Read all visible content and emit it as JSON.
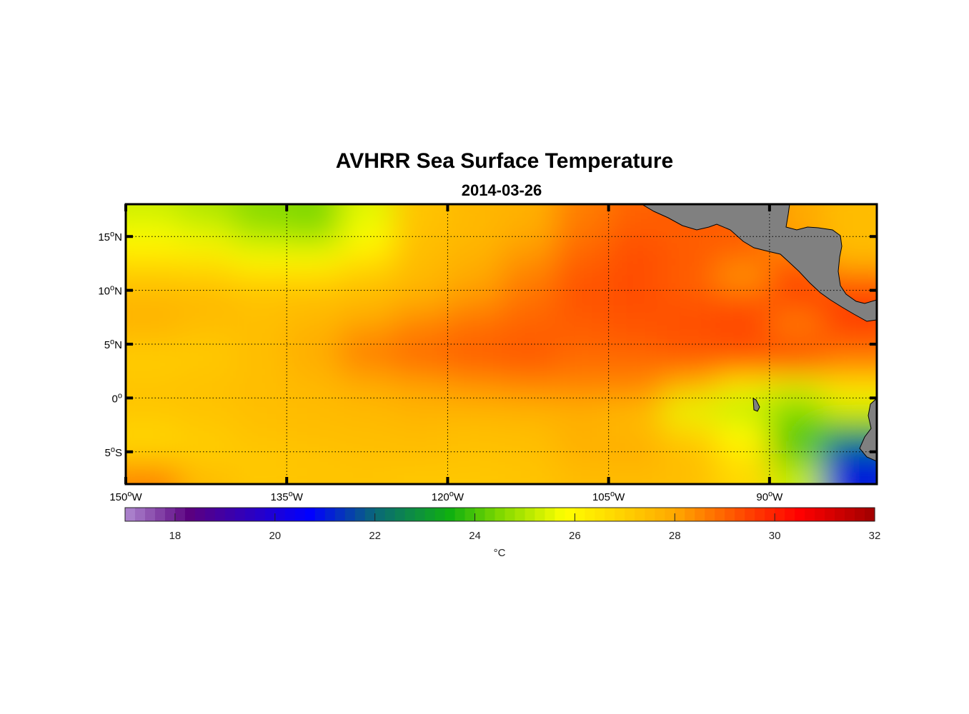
{
  "chart_data": {
    "type": "heatmap",
    "title": "AVHRR Sea Surface Temperature",
    "subtitle": "2014-03-26",
    "lon_range": [
      -150,
      -80
    ],
    "lat_range": [
      -8,
      18
    ],
    "x_ticks": [
      {
        "value": -150,
        "label": "150°W"
      },
      {
        "value": -135,
        "label": "135°W"
      },
      {
        "value": -120,
        "label": "120°W"
      },
      {
        "value": -105,
        "label": "105°W"
      },
      {
        "value": -90,
        "label": "90°W"
      }
    ],
    "y_ticks": [
      {
        "value": 15,
        "label": "15°N"
      },
      {
        "value": 10,
        "label": "10°N"
      },
      {
        "value": 5,
        "label": "5°N"
      },
      {
        "value": 0,
        "label": "0°"
      },
      {
        "value": -5,
        "label": "5°S"
      }
    ],
    "grid": true,
    "grid_lon_step": 5,
    "grid_lat_step": 2,
    "lat_centers": [
      17,
      15,
      13,
      11,
      9,
      7,
      5,
      3,
      1,
      -1,
      -3,
      -5,
      -7
    ],
    "lon_centers": [
      -147.5,
      -142.5,
      -137.5,
      -132.5,
      -127.5,
      -122.5,
      -117.5,
      -112.5,
      -107.5,
      -102.5,
      -97.5,
      -92.5,
      -87.5,
      -82.5
    ],
    "sst": [
      [
        25.3,
        25.0,
        24.6,
        24.5,
        25.5,
        27.3,
        27.6,
        27.8,
        28.6,
        29.0,
        29.2,
        29.0,
        28.0,
        27.5
      ],
      [
        25.8,
        25.6,
        25.0,
        24.8,
        25.8,
        27.4,
        27.6,
        28.0,
        28.8,
        29.2,
        29.0,
        29.2,
        28.0,
        27.5
      ],
      [
        26.5,
        26.4,
        25.8,
        25.8,
        26.5,
        27.5,
        27.8,
        28.3,
        29.0,
        29.3,
        29.2,
        28.8,
        29.0,
        27.5
      ],
      [
        27.3,
        27.2,
        27.0,
        27.0,
        27.3,
        27.6,
        28.0,
        28.6,
        29.2,
        29.3,
        29.0,
        28.2,
        29.3,
        29.0
      ],
      [
        27.6,
        27.6,
        27.4,
        27.5,
        27.6,
        27.9,
        28.3,
        28.8,
        29.2,
        29.3,
        29.2,
        29.3,
        29.5,
        29.5
      ],
      [
        27.8,
        27.5,
        27.4,
        27.6,
        28.0,
        28.5,
        28.8,
        29.0,
        29.1,
        29.2,
        29.3,
        29.4,
        28.5,
        29.6
      ],
      [
        27.3,
        27.2,
        27.5,
        27.9,
        28.6,
        28.8,
        29.0,
        29.1,
        29.0,
        29.1,
        29.2,
        29.3,
        29.3,
        29.0
      ],
      [
        27.0,
        27.2,
        27.4,
        27.8,
        28.4,
        28.8,
        29.0,
        29.1,
        28.8,
        28.8,
        29.0,
        29.0,
        29.0,
        28.5
      ],
      [
        27.4,
        27.4,
        27.5,
        27.6,
        27.8,
        28.0,
        28.2,
        28.4,
        28.5,
        28.5,
        27.5,
        26.0,
        25.5,
        26.5
      ],
      [
        27.2,
        27.3,
        27.4,
        27.5,
        27.6,
        27.8,
        27.8,
        27.8,
        27.8,
        27.6,
        25.5,
        25.0,
        24.5,
        25.5
      ],
      [
        27.0,
        27.2,
        27.4,
        27.5,
        27.5,
        27.5,
        27.4,
        27.5,
        27.8,
        27.6,
        26.8,
        25.8,
        24.3,
        23.5
      ],
      [
        26.8,
        27.0,
        27.2,
        27.3,
        27.4,
        27.5,
        27.4,
        27.4,
        27.8,
        27.9,
        27.5,
        26.3,
        24.0,
        21.5
      ],
      [
        28.5,
        27.5,
        27.2,
        27.3,
        27.3,
        27.2,
        27.2,
        27.3,
        27.5,
        27.5,
        27.4,
        26.8,
        25.2,
        21.0
      ]
    ],
    "colorbar": {
      "range": [
        17,
        32
      ],
      "ticks": [
        18,
        20,
        22,
        24,
        26,
        28,
        30,
        32
      ],
      "tick_labels": [
        "18",
        "20",
        "22",
        "24",
        "26",
        "28",
        "30",
        "32"
      ],
      "unit_label": "°C",
      "stops": [
        [
          17,
          "#b08ad0"
        ],
        [
          18.3,
          "#5a0080"
        ],
        [
          20.7,
          "#0000ff"
        ],
        [
          22,
          "#0a6878"
        ],
        [
          23.5,
          "#10b010"
        ],
        [
          24.5,
          "#7fd800"
        ],
        [
          25.8,
          "#ffff00"
        ],
        [
          27,
          "#ffd000"
        ],
        [
          28,
          "#ffa800"
        ],
        [
          29.5,
          "#ff4000"
        ],
        [
          30.5,
          "#ff0000"
        ],
        [
          32,
          "#a00000"
        ]
      ]
    },
    "land_color": "#808080"
  }
}
